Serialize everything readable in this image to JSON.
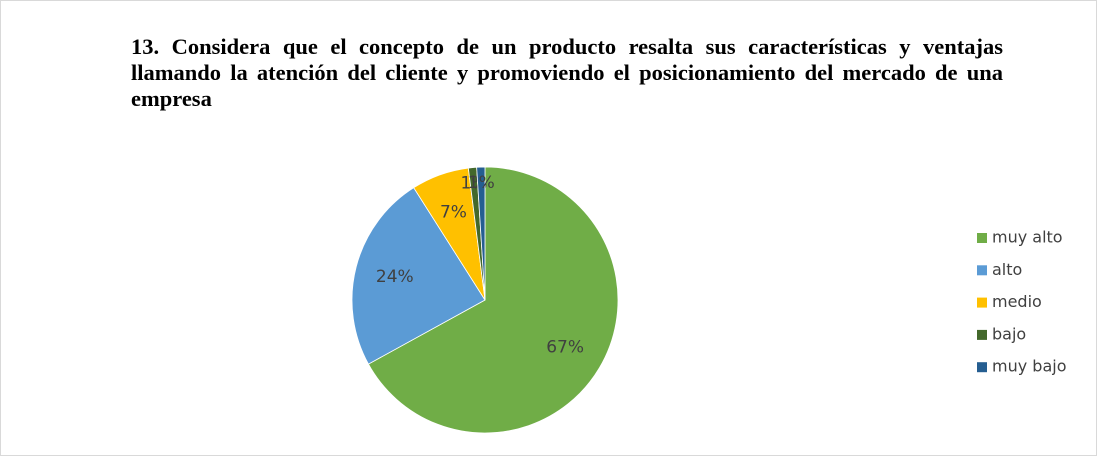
{
  "chart_data": {
    "type": "pie",
    "title": "13. Considera que el concepto de un producto resalta sus características y ventajas llamando la atención del cliente y promoviendo el posicionamiento del mercado de una empresa",
    "categories": [
      "muy alto",
      "alto",
      "medio",
      "bajo",
      "muy bajo"
    ],
    "values": [
      67,
      24,
      7,
      1,
      1
    ],
    "value_labels": [
      "67%",
      "24%",
      "7%",
      "1%",
      "1%"
    ],
    "colors": [
      "#70ad47",
      "#5b9bd5",
      "#ffc000",
      "#43682b",
      "#255e91"
    ],
    "legend": "right"
  }
}
